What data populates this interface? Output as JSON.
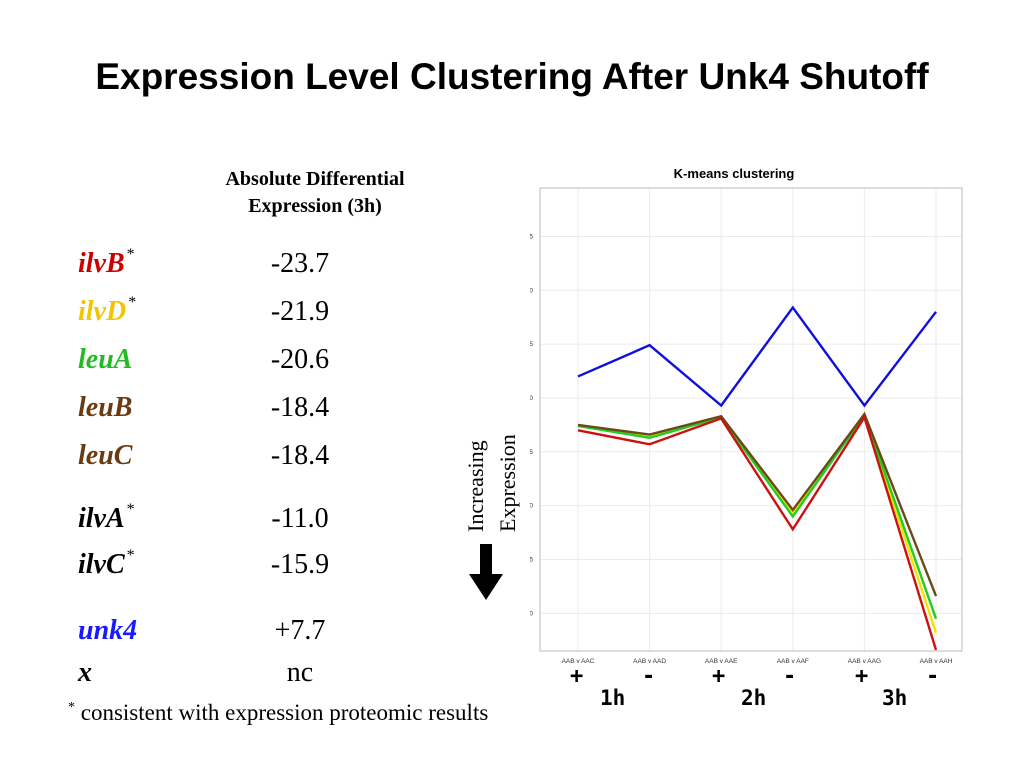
{
  "slide": {
    "title": "Expression Level Clustering After Unk4 Shutoff"
  },
  "table": {
    "header_line1": "Absolute Differential",
    "header_line2": "Expression (3h)",
    "rows": [
      {
        "gene": "ilvB",
        "star": "*",
        "value": "-23.7",
        "color": "#cc0000"
      },
      {
        "gene": "ilvD",
        "star": "*",
        "value": "-21.9",
        "color": "#f2c500"
      },
      {
        "gene": "leuA",
        "star": "",
        "value": "-20.6",
        "color": "#22bb22"
      },
      {
        "gene": "leuB",
        "star": "",
        "value": "-18.4",
        "color": "#6b3a10"
      },
      {
        "gene": "leuC",
        "star": "",
        "value": "-18.4",
        "color": "#6b3a10"
      },
      {
        "gene": "ilvA",
        "star": "*",
        "value": "-11.0",
        "color": "#000000"
      },
      {
        "gene": "ilvC",
        "star": "*",
        "value": "-15.9",
        "color": "#000000"
      },
      {
        "gene": "unk4",
        "star": "",
        "value": "+7.7",
        "color": "#1a1aff"
      },
      {
        "gene": "x",
        "star": "",
        "value": "nc",
        "color": "#000000"
      }
    ],
    "footnote_star": "*",
    "footnote_text": " consistent with expression proteomic results"
  },
  "annotation": {
    "line1": "Increasing",
    "line2": "Expression",
    "arrow_icon": "down-arrow-icon"
  },
  "timepoints": {
    "signs": [
      "+",
      "-",
      "+",
      "-",
      "+",
      "-"
    ],
    "labels": [
      "1h",
      "2h",
      "3h"
    ]
  },
  "chart_data": {
    "type": "line",
    "title": "K-means clustering",
    "categories": [
      "AAB v AAC",
      "AAB v AAD",
      "AAB v AAE",
      "AAB v AAF",
      "AAB v AAG",
      "AAB v AAH"
    ],
    "ylim": [
      -23.5,
      19.5
    ],
    "yticks": [
      15,
      10,
      5,
      0,
      -5,
      -10,
      -15,
      -20
    ],
    "grid": true,
    "series": [
      {
        "color": "#1010dd",
        "values": [
          2.0,
          4.9,
          -0.7,
          8.4,
          -0.7,
          8.0
        ]
      },
      {
        "color": "#f2e400",
        "values": [
          -2.6,
          -3.6,
          -1.8,
          -10.6,
          -1.6,
          -21.8
        ]
      },
      {
        "color": "#22cc22",
        "values": [
          -2.6,
          -3.7,
          -1.8,
          -11.0,
          -1.6,
          -20.5
        ]
      },
      {
        "color": "#6b4a1a",
        "values": [
          -2.5,
          -3.4,
          -1.7,
          -10.4,
          -1.5,
          -18.4
        ]
      },
      {
        "color": "#cc1111",
        "values": [
          -3.0,
          -4.3,
          -1.9,
          -12.2,
          -1.8,
          -23.4
        ]
      }
    ]
  }
}
